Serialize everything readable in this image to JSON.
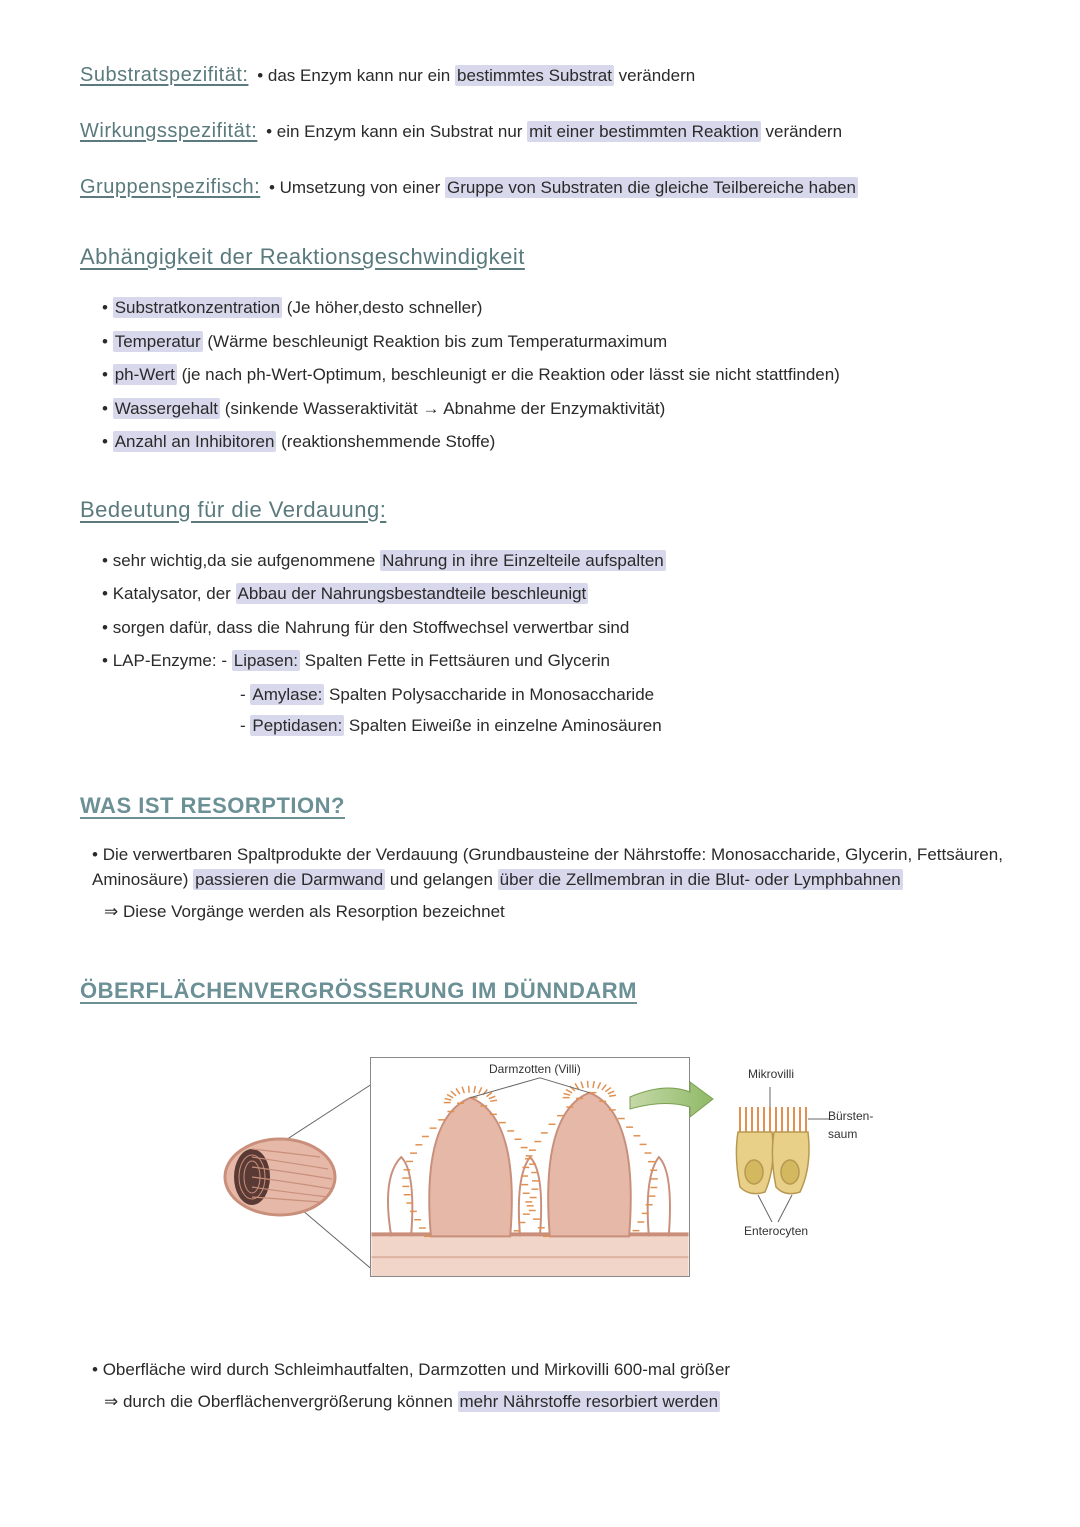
{
  "defs": [
    {
      "label": "Substratspezifität:",
      "pre": "• das Enzym kann nur ein ",
      "hl": "bestimmtes Substrat",
      "post": " verändern"
    },
    {
      "label": "Wirkungsspezifität:",
      "pre": "• ein Enzym kann ein Substrat nur ",
      "hl": "mit einer bestimmten Reaktion",
      "post": " verändern"
    },
    {
      "label": "Gruppenspezifisch:",
      "pre": " • Umsetzung von einer ",
      "hl": "Gruppe von Substraten die gleiche Teilbereiche haben",
      "post": ""
    }
  ],
  "sec1_title": "Abhängigkeit der Reaktionsgeschwindigkeit",
  "sec1_items": [
    {
      "hl": "Substratkonzentration",
      "rest": " (Je höher,desto schneller)"
    },
    {
      "hl": "Temperatur",
      "rest": " (Wärme beschleunigt Reaktion bis zum Temperaturmaximum"
    },
    {
      "hl": "ph-Wert",
      "rest": " (je nach ph-Wert-Optimum, beschleunigt er die Reaktion oder lässt sie nicht stattfinden)"
    },
    {
      "hl": "Wassergehalt",
      "rest": " (sinkende Wasseraktivität → Abnahme der Enzymaktivität)"
    },
    {
      "hl": "Anzahl an Inhibitoren",
      "rest": " (reaktionshemmende Stoffe)"
    }
  ],
  "sec2_title": "Bedeutung für die Verdauung:",
  "sec2_items": {
    "a": {
      "pre": "sehr wichtig,da sie aufgenommene ",
      "hl": "Nahrung in ihre Einzelteile aufspalten",
      "post": ""
    },
    "b": {
      "pre": "Katalysator, der ",
      "hl": "Abbau der Nahrungsbestandteile beschleunigt",
      "post": ""
    },
    "c": {
      "pre": "sorgen dafür, dass die Nahrung für den Stoffwechsel verwertbar sind",
      "hl": "",
      "post": ""
    },
    "d": {
      "pre": "LAP-Enzyme: - ",
      "hl": "Lipasen:",
      "post": " Spalten Fette in Fettsäuren und Glycerin"
    }
  },
  "sec2_sub": [
    {
      "dash": "- ",
      "hl": "Amylase:",
      "post": " Spalten Polysaccharide in Monosaccharide"
    },
    {
      "dash": "- ",
      "hl": "Peptidasen:",
      "post": " Spalten Eiweiße in einzelne Aminosäuren"
    }
  ],
  "sec3_title": "WAS IST RESORPTION?",
  "sec3_line1_pre": "Die verwertbaren Spaltprodukte der Verdauung (Grundbausteine der Nährstoffe: Monosaccharide, Glycerin, Fettsäuren, Aminosäure) ",
  "sec3_line1_hl1": "passieren die Darmwand",
  "sec3_line1_mid": " und gelangen ",
  "sec3_line1_hl2": "über die Zellmembran in die Blut- oder Lymphbahnen",
  "sec3_line2": "⇒ Diese Vorgänge werden als Resorption bezeichnet",
  "sec4_title": "ÖBERFLÄCHENVERGRÖßERUNG IM DÜNNDARM",
  "diagram": {
    "label_villi": "Darmzotten (Villi)",
    "label_micro": "Mikrovilli",
    "label_brush": "Bürsten-\nsaum",
    "label_entero": "Enterocyten",
    "colors": {
      "tissue": "#e6b8a8",
      "tissue_dark": "#c98f7b",
      "tissue_light": "#f2d5c9",
      "cell": "#e8d088",
      "cell_border": "#b89850",
      "hairs": "#e09050",
      "arrow": "#8fb967",
      "line": "#666666"
    }
  },
  "sec4_b1": "Oberfläche wird durch Schleimhautfalten, Darmzotten und Mirkovilli 600-mal größer",
  "sec4_b2_pre": "⇒ durch die Oberflächenvergrößerung können ",
  "sec4_b2_hl": "mehr Nährstoffe resorbiert werden"
}
